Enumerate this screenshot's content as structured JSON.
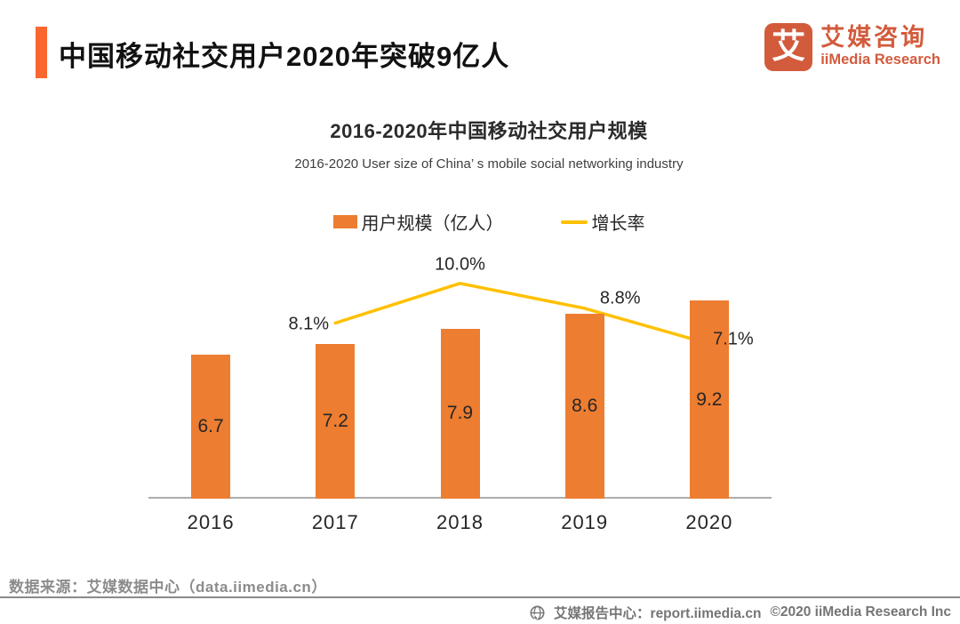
{
  "header": {
    "title": "中国移动社交用户2020年突破9亿人",
    "logo": {
      "glyph": "艾",
      "name_cn": "艾媒咨询",
      "name_en": "iiMedia Research"
    }
  },
  "chart": {
    "title": "2016-2020年中国移动社交用户规模",
    "subtitle": "2016-2020 User size of China’ s mobile social networking industry",
    "legend": [
      {
        "label": "用户规模（亿人）",
        "color": "#ED7D31",
        "type": "bar"
      },
      {
        "label": "增长率",
        "color": "#FFC000",
        "type": "line"
      }
    ]
  },
  "chart_data": {
    "type": "bar",
    "title": "2016-2020年中国移动社交用户规模",
    "subtitle": "2016-2020 User size of China’ s mobile social networking industry",
    "categories": [
      "2016",
      "2017",
      "2018",
      "2019",
      "2020"
    ],
    "series": [
      {
        "name": "用户规模（亿人）",
        "type": "bar",
        "color": "#ED7D31",
        "values": [
          6.7,
          7.2,
          7.9,
          8.6,
          9.2
        ],
        "unit": "亿人"
      },
      {
        "name": "增长率",
        "type": "line",
        "color": "#FFC000",
        "values": [
          null,
          8.1,
          10.0,
          8.8,
          7.1
        ],
        "unit": "%"
      }
    ],
    "xlabel": "",
    "ylabel": "",
    "ylim": [
      0,
      10.5
    ],
    "grid": false,
    "legend_position": "top",
    "annotations": [
      "8.1%",
      "10.0%",
      "8.8%",
      "7.1%",
      "6.7",
      "7.2",
      "7.9",
      "8.6",
      "9.2"
    ]
  },
  "colors": {
    "bar_orange": "#ED7D31",
    "line_yellow": "#FFC000",
    "accent_orange": "#F9672F",
    "logo_red_orange": "#D25B3C",
    "axis_gray": "#ADADAD",
    "footer_gray": "#757575"
  },
  "source": {
    "text": "数据来源：艾媒数据中心（data.iimedia.cn）"
  },
  "footer": {
    "site_label": "艾媒报告中心：report.iimedia.cn",
    "copyright": "©2020  iiMedia Research Inc"
  }
}
